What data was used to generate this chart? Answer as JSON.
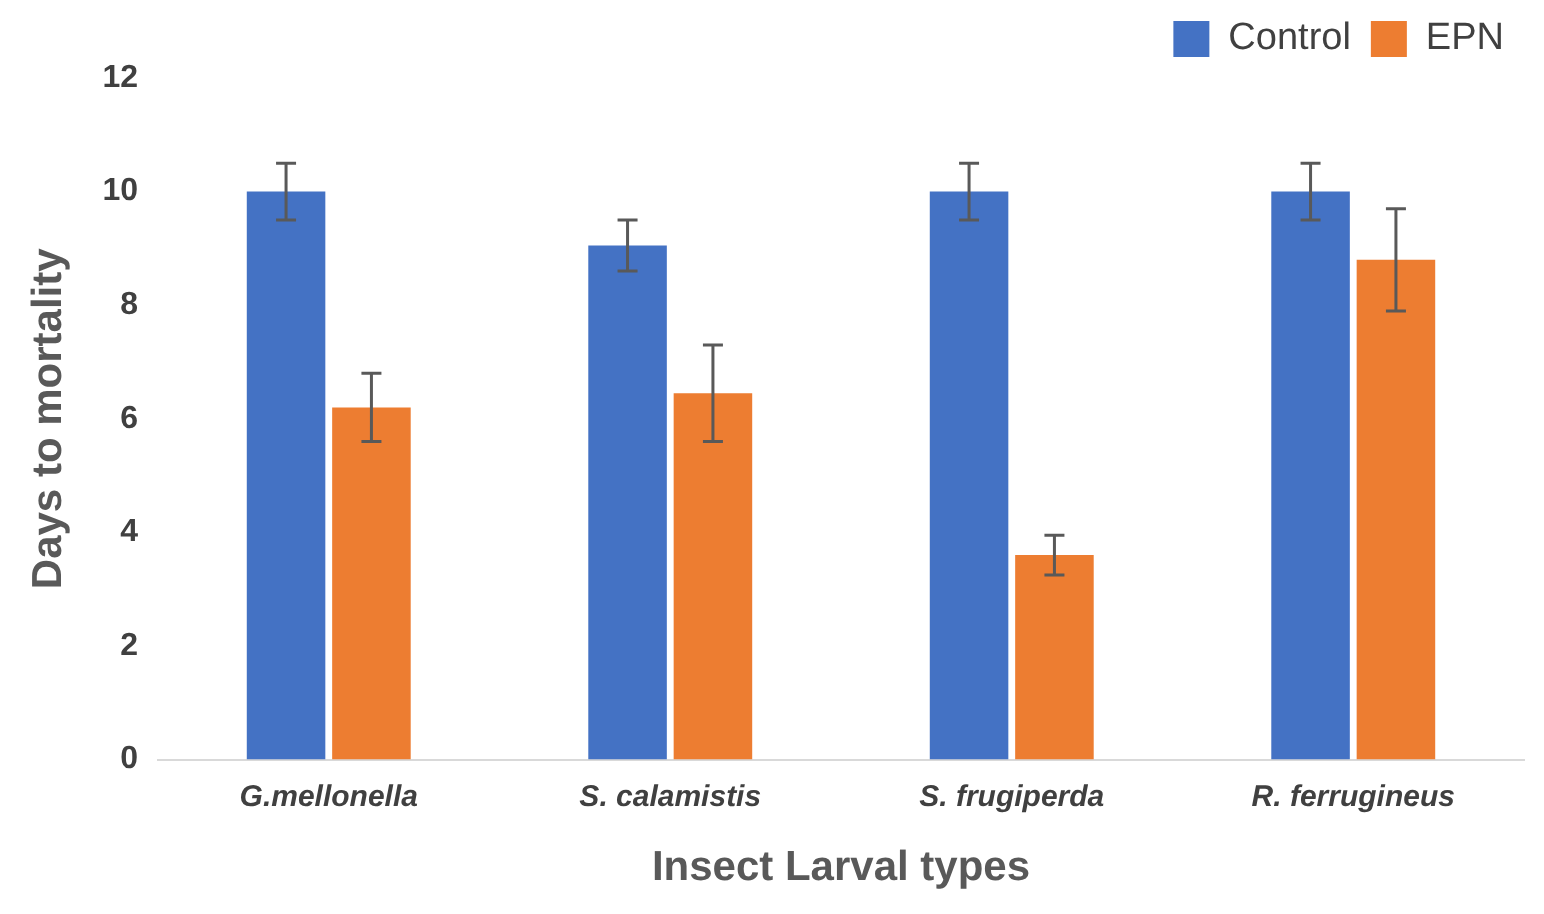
{
  "chart_data": {
    "type": "bar",
    "xlabel": "Insect Larval types",
    "ylabel": "Days to mortality",
    "categories": [
      "G.mellonella",
      "S. calamistis",
      "S. frugiperda",
      "R. ferrugineus"
    ],
    "series": [
      {
        "name": "Control",
        "color": "#4472c4",
        "values": [
          10,
          9.05,
          10,
          10
        ],
        "errors": [
          0.5,
          0.45,
          0.5,
          0.5
        ]
      },
      {
        "name": "EPN",
        "color": "#ed7d31",
        "values": [
          6.2,
          6.45,
          3.6,
          8.8
        ],
        "errors": [
          0.6,
          0.85,
          0.35,
          0.9
        ]
      }
    ],
    "ylim": [
      0,
      12
    ],
    "yticks": [
      0,
      2,
      4,
      6,
      8,
      10,
      12
    ],
    "grid": false,
    "legend": "top right"
  }
}
